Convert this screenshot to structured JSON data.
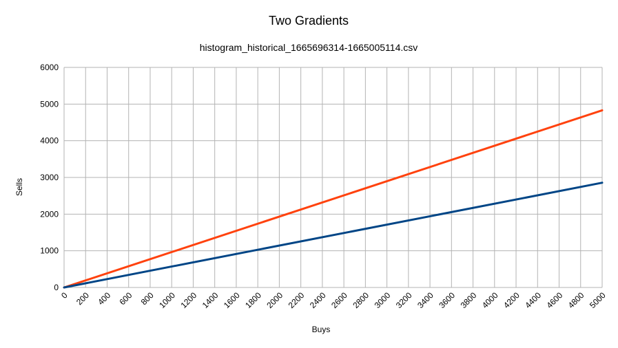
{
  "chart_data": {
    "type": "line",
    "title": "Two Gradients",
    "subtitle": "histogram_historical_1665696314-1665005114.csv",
    "xlabel": "Buys",
    "ylabel": "Sells",
    "xlim": [
      0,
      5000
    ],
    "ylim": [
      0,
      6000
    ],
    "x_ticks": [
      0,
      200,
      400,
      600,
      800,
      1000,
      1200,
      1400,
      1600,
      1800,
      2000,
      2200,
      2400,
      2600,
      2800,
      3000,
      3200,
      3400,
      3600,
      3800,
      4000,
      4200,
      4400,
      4600,
      4800,
      5000
    ],
    "y_ticks": [
      0,
      1000,
      2000,
      3000,
      4000,
      5000,
      6000
    ],
    "grid": true,
    "legend": "none",
    "series": [
      {
        "color": "#ff420e",
        "x": [
          0,
          5000
        ],
        "y": [
          0,
          4830
        ]
      },
      {
        "color": "#004586",
        "x": [
          0,
          5000
        ],
        "y": [
          0,
          2855
        ]
      }
    ]
  }
}
